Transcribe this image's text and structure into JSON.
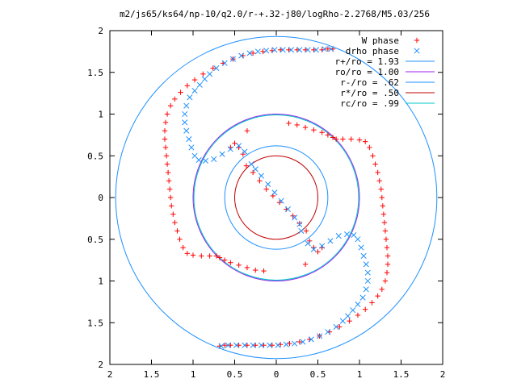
{
  "chart_data": {
    "type": "scatter",
    "title": "m2/js65/ks64/np-10/q2.0/r-+.32-j80/logRho-2.2768/M5.03/256",
    "xlabel": "",
    "ylabel": "",
    "xlim": [
      -2,
      2
    ],
    "ylim": [
      -2,
      2
    ],
    "x_tick_values": [
      -2,
      -1.5,
      -1,
      -0.5,
      0,
      0.5,
      1,
      1.5,
      2
    ],
    "x_tick_labels": [
      "2",
      "1.5",
      "1",
      "0.5",
      "0",
      "0.5",
      "1",
      "1.5",
      "2"
    ],
    "y_tick_values": [
      2,
      1.5,
      1,
      0.5,
      0,
      -0.5,
      -1,
      -1.5,
      -2
    ],
    "y_tick_labels": [
      "2",
      "1.5",
      "1",
      "0.5",
      "0",
      "0.5",
      "1",
      "1.5",
      "2"
    ],
    "grid": false,
    "legend_position": "top-right",
    "series": [
      {
        "name": "W phase",
        "marker": "plus",
        "color": "#ff0000",
        "points": [
          [
            -0.15,
            -0.88
          ],
          [
            -0.25,
            -0.87
          ],
          [
            -0.35,
            -0.84
          ],
          [
            -0.45,
            -0.81
          ],
          [
            -0.55,
            -0.78
          ],
          [
            -0.62,
            -0.75
          ],
          [
            -0.68,
            -0.72
          ],
          [
            -0.72,
            -0.7
          ],
          [
            -0.8,
            -0.7
          ],
          [
            -0.9,
            -0.7
          ],
          [
            -1.0,
            -0.69
          ],
          [
            -1.07,
            -0.67
          ],
          [
            -1.12,
            -0.6
          ],
          [
            -1.16,
            -0.5
          ],
          [
            -1.19,
            -0.4
          ],
          [
            -1.22,
            -0.3
          ],
          [
            -1.24,
            -0.2
          ],
          [
            -1.26,
            -0.1
          ],
          [
            -1.27,
            0.0
          ],
          [
            -1.28,
            0.1
          ],
          [
            -1.29,
            0.2
          ],
          [
            -1.3,
            0.3
          ],
          [
            -1.31,
            0.4
          ],
          [
            -1.32,
            0.5
          ],
          [
            -1.33,
            0.6
          ],
          [
            -1.34,
            0.7
          ],
          [
            -1.34,
            0.8
          ],
          [
            -1.33,
            0.9
          ],
          [
            -1.31,
            1.0
          ],
          [
            -1.27,
            1.1
          ],
          [
            -1.22,
            1.18
          ],
          [
            -1.15,
            1.26
          ],
          [
            -1.07,
            1.34
          ],
          [
            -0.98,
            1.41
          ],
          [
            -0.88,
            1.48
          ],
          [
            -0.76,
            1.55
          ],
          [
            -0.64,
            1.61
          ],
          [
            -0.52,
            1.66
          ],
          [
            -0.4,
            1.7
          ],
          [
            -0.28,
            1.73
          ],
          [
            -0.16,
            1.75
          ],
          [
            -0.05,
            1.76
          ],
          [
            0.05,
            1.77
          ],
          [
            0.15,
            1.77
          ],
          [
            0.25,
            1.77
          ],
          [
            0.35,
            1.77
          ],
          [
            0.45,
            1.77
          ],
          [
            0.55,
            1.77
          ],
          [
            0.62,
            1.78
          ],
          [
            0.68,
            1.78
          ],
          [
            0.15,
            0.89
          ],
          [
            0.25,
            0.87
          ],
          [
            0.35,
            0.84
          ],
          [
            0.45,
            0.81
          ],
          [
            0.55,
            0.78
          ],
          [
            0.62,
            0.75
          ],
          [
            0.68,
            0.72
          ],
          [
            0.72,
            0.7
          ],
          [
            0.8,
            0.7
          ],
          [
            0.9,
            0.7
          ],
          [
            1.0,
            0.69
          ],
          [
            1.07,
            0.67
          ],
          [
            1.12,
            0.6
          ],
          [
            1.16,
            0.5
          ],
          [
            1.19,
            0.4
          ],
          [
            1.22,
            0.3
          ],
          [
            1.24,
            0.2
          ],
          [
            1.26,
            0.1
          ],
          [
            1.27,
            0.0
          ],
          [
            1.28,
            -0.1
          ],
          [
            1.29,
            -0.2
          ],
          [
            1.3,
            -0.3
          ],
          [
            1.31,
            -0.4
          ],
          [
            1.32,
            -0.5
          ],
          [
            1.33,
            -0.6
          ],
          [
            1.34,
            -0.7
          ],
          [
            1.34,
            -0.8
          ],
          [
            1.33,
            -0.9
          ],
          [
            1.31,
            -1.0
          ],
          [
            1.27,
            -1.1
          ],
          [
            1.22,
            -1.18
          ],
          [
            1.15,
            -1.26
          ],
          [
            1.07,
            -1.34
          ],
          [
            0.98,
            -1.41
          ],
          [
            0.88,
            -1.48
          ],
          [
            0.76,
            -1.55
          ],
          [
            0.64,
            -1.61
          ],
          [
            0.52,
            -1.66
          ],
          [
            0.4,
            -1.7
          ],
          [
            0.28,
            -1.73
          ],
          [
            0.16,
            -1.75
          ],
          [
            0.05,
            -1.76
          ],
          [
            -0.05,
            -1.77
          ],
          [
            -0.15,
            -1.77
          ],
          [
            -0.25,
            -1.77
          ],
          [
            -0.35,
            -1.77
          ],
          [
            -0.45,
            -1.77
          ],
          [
            -0.55,
            -1.77
          ],
          [
            -0.62,
            -1.77
          ],
          [
            -0.68,
            -1.78
          ],
          [
            -0.36,
            0.38
          ],
          [
            -0.28,
            0.3
          ],
          [
            -0.2,
            0.2
          ],
          [
            -0.12,
            0.1
          ],
          [
            -0.04,
            0.02
          ],
          [
            0.04,
            -0.06
          ],
          [
            0.12,
            -0.14
          ],
          [
            0.2,
            -0.22
          ],
          [
            0.28,
            -0.31
          ],
          [
            0.36,
            -0.4
          ],
          [
            -0.4,
            0.52
          ],
          [
            -0.45,
            0.6
          ],
          [
            -0.5,
            0.65
          ],
          [
            -0.55,
            0.6
          ],
          [
            0.4,
            -0.52
          ],
          [
            0.45,
            -0.6
          ],
          [
            0.5,
            -0.65
          ],
          [
            0.55,
            -0.6
          ],
          [
            0.35,
            -0.8
          ],
          [
            -0.35,
            0.8
          ]
        ]
      },
      {
        "name": "drho phase",
        "marker": "cross",
        "color": "#1e90ff",
        "points": [
          [
            -0.62,
            1.61
          ],
          [
            -0.52,
            1.66
          ],
          [
            -0.42,
            1.7
          ],
          [
            -0.32,
            1.73
          ],
          [
            -0.22,
            1.75
          ],
          [
            -0.12,
            1.76
          ],
          [
            -0.02,
            1.77
          ],
          [
            0.08,
            1.77
          ],
          [
            0.18,
            1.77
          ],
          [
            0.28,
            1.77
          ],
          [
            0.38,
            1.77
          ],
          [
            0.48,
            1.77
          ],
          [
            0.58,
            1.78
          ],
          [
            0.66,
            1.78
          ],
          [
            -0.72,
            1.55
          ],
          [
            -0.8,
            1.48
          ],
          [
            -0.86,
            1.42
          ],
          [
            -0.92,
            1.35
          ],
          [
            -0.98,
            1.28
          ],
          [
            -1.04,
            1.2
          ],
          [
            -1.08,
            1.1
          ],
          [
            -1.1,
            1.0
          ],
          [
            -1.1,
            0.9
          ],
          [
            -1.08,
            0.8
          ],
          [
            -1.05,
            0.7
          ],
          [
            -1.02,
            0.6
          ],
          [
            -0.98,
            0.5
          ],
          [
            -0.93,
            0.45
          ],
          [
            -0.85,
            0.44
          ],
          [
            -0.75,
            0.46
          ],
          [
            -0.65,
            0.52
          ],
          [
            -0.55,
            0.58
          ],
          [
            -0.45,
            0.62
          ],
          [
            -0.38,
            0.55
          ],
          [
            -0.3,
            0.4
          ],
          [
            -0.25,
            0.34
          ],
          [
            -0.18,
            0.26
          ],
          [
            -0.1,
            0.16
          ],
          [
            -0.02,
            0.06
          ],
          [
            0.06,
            -0.04
          ],
          [
            0.14,
            -0.14
          ],
          [
            0.22,
            -0.24
          ],
          [
            0.28,
            -0.32
          ],
          [
            0.62,
            -1.61
          ],
          [
            0.52,
            -1.66
          ],
          [
            0.42,
            -1.7
          ],
          [
            0.32,
            -1.73
          ],
          [
            0.22,
            -1.75
          ],
          [
            0.12,
            -1.76
          ],
          [
            0.02,
            -1.77
          ],
          [
            -0.08,
            -1.77
          ],
          [
            -0.18,
            -1.77
          ],
          [
            -0.28,
            -1.77
          ],
          [
            -0.38,
            -1.77
          ],
          [
            -0.48,
            -1.77
          ],
          [
            -0.58,
            -1.77
          ],
          [
            -0.66,
            -1.78
          ],
          [
            0.72,
            -1.55
          ],
          [
            0.8,
            -1.48
          ],
          [
            0.86,
            -1.42
          ],
          [
            0.92,
            -1.35
          ],
          [
            0.98,
            -1.28
          ],
          [
            1.04,
            -1.2
          ],
          [
            1.08,
            -1.1
          ],
          [
            1.1,
            -1.0
          ],
          [
            1.1,
            -0.9
          ],
          [
            1.08,
            -0.8
          ],
          [
            1.05,
            -0.7
          ],
          [
            1.02,
            -0.6
          ],
          [
            0.98,
            -0.5
          ],
          [
            0.93,
            -0.45
          ],
          [
            0.85,
            -0.44
          ],
          [
            0.75,
            -0.46
          ],
          [
            0.65,
            -0.52
          ],
          [
            0.55,
            -0.58
          ],
          [
            0.45,
            -0.62
          ],
          [
            0.38,
            -0.55
          ],
          [
            0.3,
            -0.4
          ]
        ]
      }
    ],
    "circles": [
      {
        "name": "r+/ro = 1.93",
        "radius": 1.93,
        "color": "#1e90ff"
      },
      {
        "name": "ro/ro = 1.00",
        "radius": 1.0,
        "color": "#a020f0"
      },
      {
        "name": "r-/ro = .62",
        "radius": 0.62,
        "color": "#1e90ff"
      },
      {
        "name": "r*/ro = .50",
        "radius": 0.5,
        "color": "#c00000"
      },
      {
        "name": "rc/ro = .99",
        "radius": 0.99,
        "color": "#00c8c8"
      }
    ]
  }
}
